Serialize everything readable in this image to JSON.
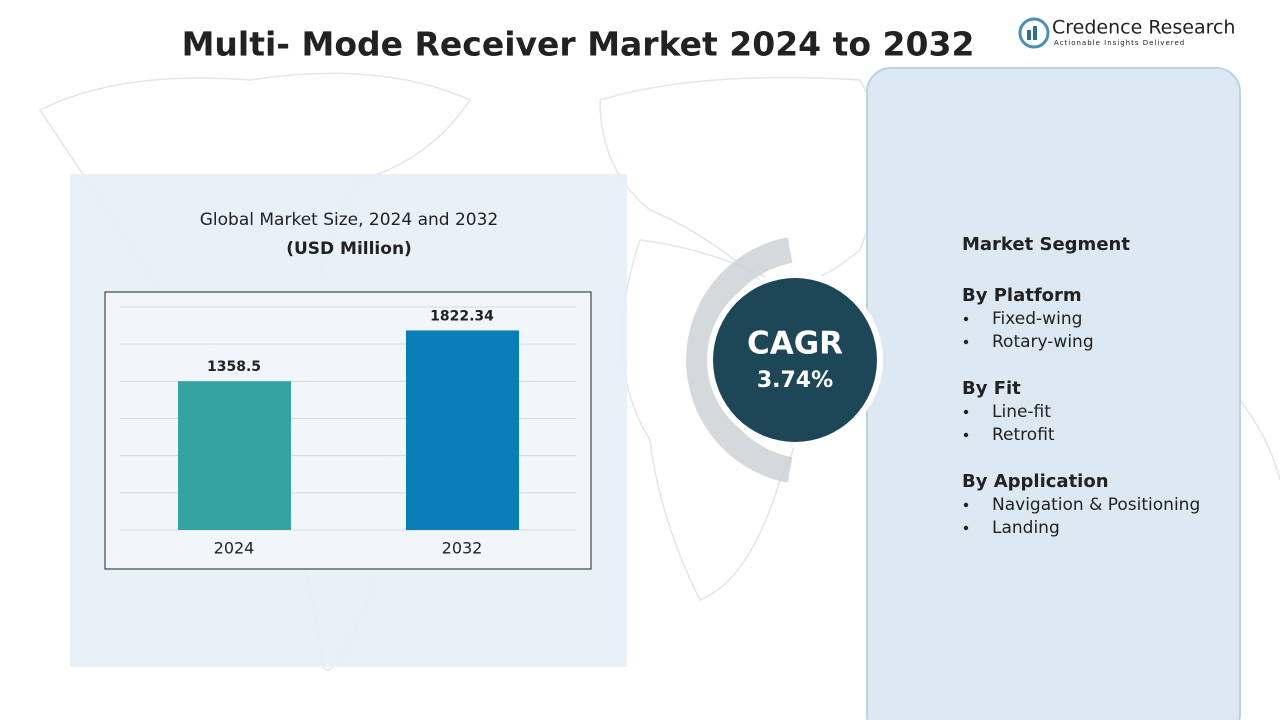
{
  "title": "Multi- Mode Receiver Market 2024 to 2032",
  "logo": {
    "name": "Credence Research",
    "tagline": "Actionable Insights Delivered"
  },
  "chart_data": {
    "type": "bar",
    "title": "Global Market Size, 2024 and 2032",
    "subtitle": "(USD Million)",
    "categories": [
      "2024",
      "2032"
    ],
    "values": [
      1358.5,
      1822.34
    ],
    "colors": [
      "#35a3a2",
      "#0b7fb5"
    ],
    "ylim": [
      0,
      2100
    ],
    "grid": true
  },
  "cagr": {
    "label": "CAGR",
    "value": "3.74%"
  },
  "segments": {
    "title": "Market Segment",
    "groups": [
      {
        "name": "By Platform",
        "items": [
          "Fixed-wing",
          "Rotary-wing"
        ]
      },
      {
        "name": "By Fit",
        "items": [
          "Line-fit",
          "Retrofit"
        ]
      },
      {
        "name": "By Application",
        "items": [
          "Navigation & Positioning",
          "Landing"
        ]
      }
    ]
  }
}
